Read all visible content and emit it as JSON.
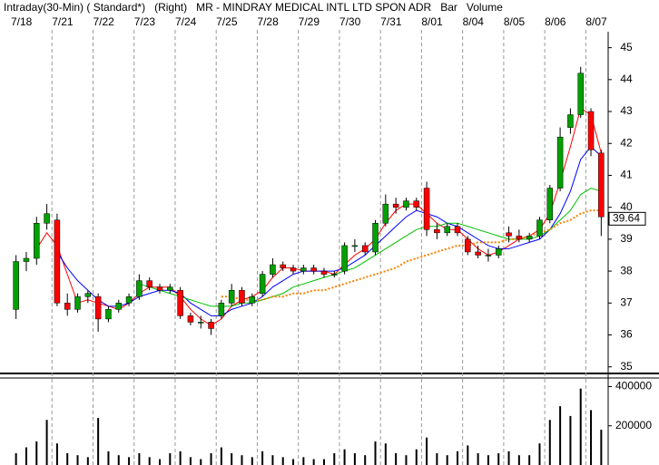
{
  "chart_data": [
    {
      "type": "candlestick",
      "title": "Intraday(30-Min) ( Standard*)   (Right)   MR - MINDRAY MEDICAL INTL LTD SPON ADR   Bar   Volume",
      "x": [
        0,
        1,
        2,
        3,
        4,
        5,
        6,
        7,
        8,
        9,
        10,
        11,
        12,
        13,
        14,
        15,
        16,
        17,
        18,
        19,
        20,
        21,
        22,
        23,
        24,
        25,
        26,
        27,
        28,
        29,
        30,
        31,
        32,
        33,
        34,
        35,
        36,
        37,
        38,
        39,
        40,
        41,
        42,
        43,
        44,
        45,
        46,
        47,
        48,
        49,
        50,
        51,
        52,
        53,
        54,
        55,
        56,
        57
      ],
      "open": [
        36.8,
        38.3,
        38.4,
        39.5,
        39.6,
        37.0,
        36.8,
        37.2,
        37.2,
        36.5,
        36.8,
        37.0,
        37.2,
        37.7,
        37.5,
        37.4,
        37.4,
        36.6,
        36.4,
        36.4,
        36.6,
        37.0,
        37.4,
        37.0,
        37.3,
        37.9,
        38.2,
        38.1,
        38.0,
        38.1,
        38.0,
        37.9,
        38.0,
        38.8,
        38.8,
        38.6,
        39.5,
        40.1,
        40.0,
        40.2,
        40.6,
        39.3,
        39.2,
        39.4,
        39.0,
        38.6,
        38.5,
        38.5,
        39.2,
        39.1,
        39.0,
        39.1,
        39.6,
        40.6,
        42.5,
        42.9,
        43.0,
        41.7
      ],
      "high": [
        38.5,
        38.6,
        39.7,
        40.1,
        39.8,
        37.3,
        37.3,
        37.4,
        37.3,
        36.9,
        37.1,
        37.3,
        37.9,
        37.8,
        37.6,
        37.6,
        37.5,
        36.7,
        36.6,
        36.5,
        37.1,
        37.6,
        37.5,
        37.3,
        38.0,
        38.4,
        38.3,
        38.2,
        38.2,
        38.2,
        38.1,
        38.0,
        38.9,
        39.0,
        38.9,
        39.6,
        40.4,
        40.3,
        40.3,
        40.3,
        40.8,
        39.5,
        39.5,
        39.5,
        39.1,
        38.8,
        38.7,
        38.8,
        39.4,
        39.3,
        39.2,
        39.7,
        40.7,
        42.5,
        43.1,
        44.4,
        43.1,
        41.8
      ],
      "low": [
        36.5,
        38.0,
        38.2,
        39.3,
        36.9,
        36.6,
        36.7,
        37.0,
        36.1,
        36.4,
        36.7,
        36.9,
        37.1,
        37.4,
        37.3,
        37.3,
        36.5,
        36.3,
        36.2,
        36.0,
        36.5,
        36.9,
        36.9,
        36.9,
        37.2,
        37.8,
        38.0,
        37.9,
        37.9,
        37.9,
        37.8,
        37.8,
        37.9,
        38.6,
        38.5,
        38.5,
        39.4,
        39.8,
        39.9,
        39.9,
        39.1,
        39.0,
        39.1,
        39.1,
        38.5,
        38.4,
        38.3,
        38.4,
        38.9,
        38.9,
        38.9,
        39.0,
        39.5,
        40.5,
        42.3,
        42.8,
        41.6,
        39.1
      ],
      "close": [
        38.3,
        38.4,
        39.5,
        39.8,
        37.0,
        36.8,
        37.2,
        37.3,
        36.5,
        36.8,
        37.0,
        37.2,
        37.7,
        37.5,
        37.4,
        37.5,
        36.6,
        36.4,
        36.4,
        36.2,
        37.0,
        37.4,
        37.0,
        37.2,
        37.9,
        38.2,
        38.1,
        38.0,
        38.1,
        38.0,
        37.9,
        37.9,
        38.8,
        38.8,
        38.6,
        39.5,
        40.1,
        40.0,
        40.2,
        40.0,
        39.3,
        39.2,
        39.4,
        39.2,
        38.6,
        38.5,
        38.5,
        38.7,
        39.1,
        39.0,
        39.1,
        39.6,
        40.6,
        42.2,
        42.9,
        44.2,
        41.8,
        39.7
      ],
      "up_color": "#00a000",
      "down_color": "#ff0000",
      "series": [
        {
          "color": "#ff0000",
          "values": [
            null,
            null,
            38.7,
            39.2,
            38.8,
            37.9,
            37.0,
            37.1,
            37.0,
            36.9,
            36.8,
            37.0,
            37.3,
            37.5,
            37.5,
            37.5,
            37.2,
            36.8,
            36.5,
            36.3,
            36.5,
            36.9,
            37.1,
            37.2,
            37.4,
            37.8,
            38.1,
            38.1,
            38.0,
            38.0,
            38.0,
            37.9,
            38.2,
            38.5,
            38.7,
            39.0,
            39.5,
            39.9,
            40.1,
            40.1,
            39.8,
            39.5,
            39.3,
            39.3,
            39.0,
            38.7,
            38.5,
            38.6,
            38.8,
            39.0,
            39.1,
            39.3,
            39.8,
            40.8,
            41.9,
            43.1,
            42.9,
            41.7
          ]
        },
        {
          "color": "#0000ff",
          "values": [
            null,
            null,
            null,
            null,
            38.6,
            38.1,
            37.7,
            37.4,
            37.1,
            36.9,
            36.9,
            37.0,
            37.2,
            37.3,
            37.4,
            37.4,
            37.3,
            37.0,
            36.8,
            36.6,
            36.6,
            36.8,
            36.9,
            37.0,
            37.2,
            37.5,
            37.7,
            37.9,
            38.0,
            38.0,
            38.0,
            38.0,
            38.1,
            38.3,
            38.5,
            38.8,
            39.1,
            39.4,
            39.7,
            39.9,
            39.8,
            39.7,
            39.5,
            39.4,
            39.2,
            39.0,
            38.8,
            38.7,
            38.7,
            38.8,
            38.9,
            39.0,
            39.3,
            39.8,
            40.5,
            41.5,
            41.9,
            41.6
          ]
        },
        {
          "color": "#00c000",
          "values": [
            null,
            null,
            null,
            null,
            null,
            null,
            null,
            null,
            null,
            null,
            null,
            null,
            37.6,
            37.5,
            37.4,
            37.3,
            37.2,
            37.1,
            37.0,
            36.9,
            36.9,
            36.9,
            37.0,
            37.0,
            37.1,
            37.2,
            37.3,
            37.5,
            37.6,
            37.7,
            37.8,
            37.9,
            38.0,
            38.1,
            38.3,
            38.5,
            38.7,
            38.9,
            39.1,
            39.3,
            39.4,
            39.4,
            39.5,
            39.5,
            39.4,
            39.3,
            39.2,
            39.1,
            39.0,
            39.0,
            39.0,
            39.1,
            39.3,
            39.6,
            39.9,
            40.4,
            40.6,
            40.5
          ]
        },
        {
          "color": "#ff8000",
          "dotted": true,
          "values": [
            null,
            null,
            null,
            null,
            null,
            null,
            null,
            null,
            null,
            null,
            null,
            null,
            null,
            null,
            null,
            null,
            null,
            null,
            null,
            null,
            37.2,
            37.2,
            37.1,
            37.1,
            37.1,
            37.2,
            37.2,
            37.3,
            37.3,
            37.4,
            37.4,
            37.5,
            37.6,
            37.7,
            37.8,
            37.9,
            38.0,
            38.1,
            38.3,
            38.4,
            38.5,
            38.6,
            38.7,
            38.8,
            38.8,
            38.9,
            38.9,
            38.9,
            39.0,
            39.0,
            39.1,
            39.2,
            39.3,
            39.5,
            39.6,
            39.8,
            39.9,
            39.9
          ]
        }
      ],
      "last_price": 39.64,
      "xlim": [
        -0.5,
        57.5
      ],
      "xticks": [
        {
          "value": 0,
          "label": "7/18"
        },
        {
          "value": 4,
          "label": "7/21"
        },
        {
          "value": 8,
          "label": "7/22"
        },
        {
          "value": 12,
          "label": "7/23"
        },
        {
          "value": 16,
          "label": "7/24"
        },
        {
          "value": 20,
          "label": "7/25"
        },
        {
          "value": 24,
          "label": "7/28"
        },
        {
          "value": 28,
          "label": "7/29"
        },
        {
          "value": 32,
          "label": "7/30"
        },
        {
          "value": 36,
          "label": "7/31"
        },
        {
          "value": 40,
          "label": "8/01"
        },
        {
          "value": 44,
          "label": "8/04"
        },
        {
          "value": 48,
          "label": "8/05"
        },
        {
          "value": 52,
          "label": "8/06"
        },
        {
          "value": 56,
          "label": "8/07"
        }
      ],
      "ylim": [
        34.85,
        45.5
      ],
      "yticks": [
        35,
        36,
        37,
        38,
        39,
        40,
        41,
        42,
        43,
        44,
        45
      ]
    },
    {
      "type": "bar",
      "x": [
        0,
        1,
        2,
        3,
        4,
        5,
        6,
        7,
        8,
        9,
        10,
        11,
        12,
        13,
        14,
        15,
        16,
        17,
        18,
        19,
        20,
        21,
        22,
        23,
        24,
        25,
        26,
        27,
        28,
        29,
        30,
        31,
        32,
        33,
        34,
        35,
        36,
        37,
        38,
        39,
        40,
        41,
        42,
        43,
        44,
        45,
        46,
        47,
        48,
        49,
        50,
        51,
        52,
        53,
        54,
        55,
        56,
        57
      ],
      "values": [
        60000,
        90000,
        120000,
        230000,
        110000,
        60000,
        50000,
        40000,
        240000,
        70000,
        50000,
        40000,
        60000,
        40000,
        30000,
        60000,
        70000,
        40000,
        30000,
        60000,
        90000,
        60000,
        50000,
        40000,
        70000,
        50000,
        40000,
        30000,
        40000,
        30000,
        30000,
        60000,
        80000,
        60000,
        50000,
        120000,
        110000,
        60000,
        50000,
        80000,
        140000,
        60000,
        50000,
        70000,
        100000,
        60000,
        50000,
        60000,
        70000,
        50000,
        50000,
        110000,
        230000,
        300000,
        250000,
        390000,
        280000,
        180000
      ],
      "color": "#000000",
      "xlim": [
        -0.5,
        57.5
      ],
      "ylim": [
        0,
        430000
      ],
      "yticks": [
        200000,
        400000
      ]
    }
  ]
}
